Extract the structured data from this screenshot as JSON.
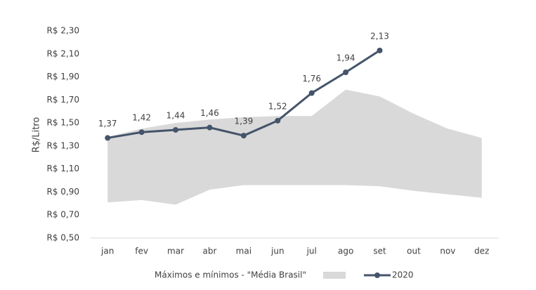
{
  "chart_data": {
    "type": "line",
    "y_label": "R$/Litro",
    "categories": [
      "jan",
      "fev",
      "mar",
      "abr",
      "mai",
      "jun",
      "jul",
      "ago",
      "set",
      "out",
      "nov",
      "dez"
    ],
    "series": [
      {
        "name": "Máximos e mínimos - \"Média Brasil\"",
        "color": "#d9d9d9",
        "max": [
          1.38,
          1.45,
          1.5,
          1.53,
          1.55,
          1.56,
          1.56,
          1.79,
          1.73,
          1.58,
          1.45,
          1.37
        ],
        "min": [
          0.81,
          0.83,
          0.79,
          0.92,
          0.96,
          0.96,
          0.96,
          0.96,
          0.95,
          0.91,
          0.88,
          0.85
        ]
      },
      {
        "name": "2020",
        "color": "#44546a",
        "values": [
          1.37,
          1.42,
          1.44,
          1.46,
          1.39,
          1.52,
          1.76,
          1.94,
          2.13,
          null,
          null,
          null
        ],
        "value_labels": [
          "1,37",
          "1,42",
          "1,44",
          "1,46",
          "1,39",
          "1,52",
          "1,76",
          "1,94",
          "2,13",
          null,
          null,
          null
        ]
      }
    ],
    "ylim": [
      0.5,
      2.3
    ],
    "yticks": [
      {
        "value": 0.5,
        "label": "R$ 0,50"
      },
      {
        "value": 0.7,
        "label": "R$ 0,70"
      },
      {
        "value": 0.9,
        "label": "R$ 0,90"
      },
      {
        "value": 1.1,
        "label": "R$ 1,10"
      },
      {
        "value": 1.3,
        "label": "R$ 1,30"
      },
      {
        "value": 1.5,
        "label": "R$ 1,50"
      },
      {
        "value": 1.7,
        "label": "R$ 1,70"
      },
      {
        "value": 1.9,
        "label": "R$ 1,90"
      },
      {
        "value": 2.1,
        "label": "R$ 2,10"
      },
      {
        "value": 2.3,
        "label": "R$ 2,30"
      }
    ],
    "grid": false
  }
}
